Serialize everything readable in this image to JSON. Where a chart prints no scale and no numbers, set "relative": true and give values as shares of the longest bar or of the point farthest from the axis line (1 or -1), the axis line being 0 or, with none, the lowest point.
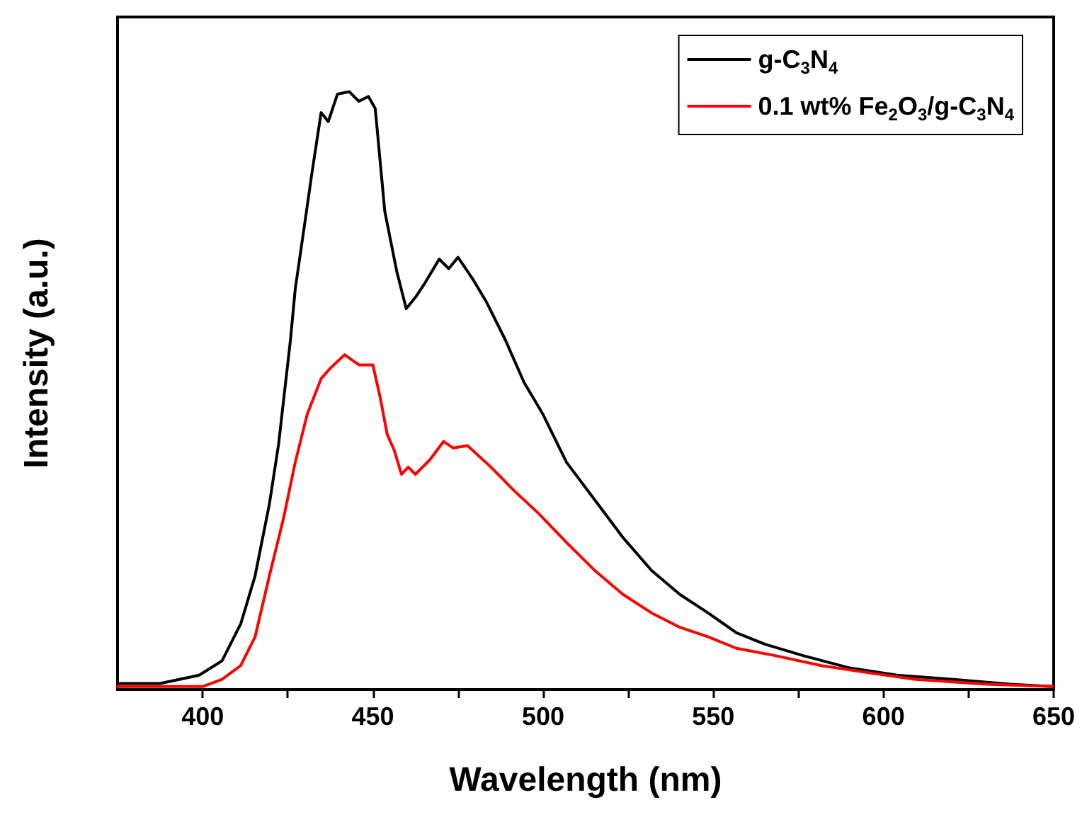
{
  "chart_data": {
    "type": "line",
    "xlabel": "Wavelength (nm)",
    "ylabel": "Intensity (a.u.)",
    "relative": true,
    "xlim": [
      375,
      650
    ],
    "xticks": [
      400,
      {
        "value": 425,
        "label": null
      },
      450,
      {
        "value": 475,
        "label": null
      },
      500,
      {
        "value": 525,
        "label": null
      },
      550,
      {
        "value": 575,
        "label": null
      },
      600,
      {
        "value": 625,
        "label": null
      },
      650
    ],
    "legend": "top right",
    "marker": "none",
    "series": [
      {
        "name": "g-C$_{3}$N$_{4}$",
        "color": "#000000",
        "x": [
          375,
          387.5,
          399,
          405.7,
          411.2,
          415.4,
          419.6,
          422.3,
          425.8,
          427.2,
          430,
          432,
          434.8,
          436.9,
          439.6,
          443.1,
          445.9,
          448.7,
          450.7,
          453.5,
          457,
          459.8,
          462.5,
          465.3,
          469.5,
          472.3,
          475,
          479.2,
          483.3,
          488.9,
          494.4,
          500,
          506.9,
          515.2,
          523.5,
          531.9,
          540.2,
          548.5,
          556.8,
          565.1,
          576.2,
          590.1,
          604,
          620.6,
          637.2,
          649.7
        ],
        "values": [
          0.01,
          0.01,
          0.024,
          0.048,
          0.11,
          0.19,
          0.31,
          0.41,
          0.585,
          0.67,
          0.78,
          0.86,
          0.965,
          0.95,
          0.996,
          1,
          0.984,
          0.992,
          0.972,
          0.8,
          0.7,
          0.637,
          0.656,
          0.68,
          0.72,
          0.704,
          0.723,
          0.688,
          0.649,
          0.585,
          0.514,
          0.46,
          0.38,
          0.317,
          0.254,
          0.199,
          0.159,
          0.128,
          0.095,
          0.076,
          0.057,
          0.036,
          0.024,
          0.017,
          0.009,
          0.005
        ]
      },
      {
        "name": "0.1 wt% Fe$_{2}$O$_{3}$/g-C$_{3}$N$_{4}$",
        "color": "#ff0000",
        "x": [
          375,
          400,
          405.7,
          411.2,
          415.4,
          419.6,
          423.7,
          427.2,
          430.7,
          434.8,
          437.6,
          441.7,
          445.9,
          450,
          452.1,
          454.2,
          456.3,
          458.4,
          460.4,
          462.5,
          466.7,
          470.8,
          473.6,
          477.8,
          484.7,
          491.6,
          498.6,
          506.9,
          515.2,
          523.5,
          531.9,
          540.2,
          548.5,
          556.8,
          567.9,
          581.8,
          595.6,
          609.5,
          630.3,
          649.7
        ],
        "values": [
          0.005,
          0.005,
          0.017,
          0.04,
          0.088,
          0.19,
          0.285,
          0.38,
          0.46,
          0.52,
          0.538,
          0.56,
          0.543,
          0.543,
          0.49,
          0.427,
          0.4,
          0.36,
          0.372,
          0.36,
          0.384,
          0.415,
          0.404,
          0.408,
          0.372,
          0.332,
          0.295,
          0.246,
          0.199,
          0.159,
          0.128,
          0.104,
          0.088,
          0.069,
          0.057,
          0.04,
          0.028,
          0.017,
          0.009,
          0.005
        ]
      }
    ]
  }
}
